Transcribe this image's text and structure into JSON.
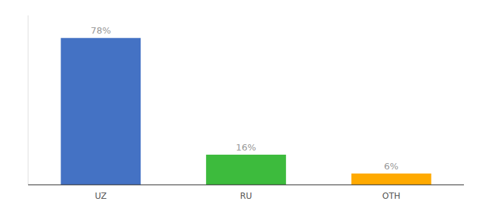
{
  "chart_data": {
    "type": "bar",
    "categories": [
      "UZ",
      "RU",
      "OTH"
    ],
    "values": [
      78,
      16,
      6
    ],
    "value_labels": [
      "78%",
      "16%",
      "6%"
    ],
    "data_labels": true,
    "colors": [
      "#4472c4",
      "#3dbb3d",
      "#ffaa00"
    ],
    "ylim": [
      0,
      90
    ],
    "tick_labels": "x",
    "grid": false
  }
}
